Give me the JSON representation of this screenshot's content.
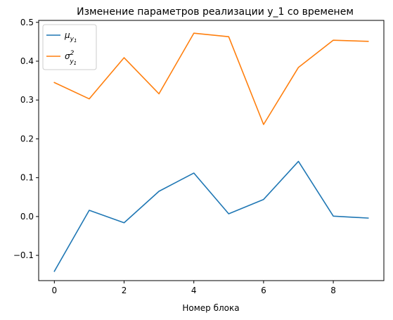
{
  "chart_data": {
    "type": "line",
    "title": "Изменение параметров реализации y_1 со временем",
    "xlabel": "Номер блока",
    "ylabel": "",
    "x": [
      0,
      1,
      2,
      3,
      4,
      5,
      6,
      7,
      8,
      9
    ],
    "xlim": [
      -0.45,
      9.45
    ],
    "ylim": [
      -0.165,
      0.505
    ],
    "xticks": [
      0,
      2,
      4,
      6,
      8
    ],
    "yticks": [
      -0.1,
      0.0,
      0.1,
      0.2,
      0.3,
      0.4,
      0.5
    ],
    "xtick_labels": [
      "0",
      "2",
      "4",
      "6",
      "8"
    ],
    "ytick_labels": [
      "−0.1",
      "0.0",
      "0.1",
      "0.2",
      "0.3",
      "0.4",
      "0.5"
    ],
    "grid": false,
    "legend_position": "top-left",
    "series": [
      {
        "name": "μ_{y_1}",
        "legend_main": "μ",
        "legend_sub": "y",
        "legend_subsub": "1",
        "legend_sup": "",
        "color": "#1f77b4",
        "values": [
          -0.141,
          0.016,
          -0.016,
          0.065,
          0.112,
          0.007,
          0.044,
          0.142,
          0.001,
          -0.004
        ]
      },
      {
        "name": "σ²_{y_1}",
        "legend_main": "σ",
        "legend_sub": "y",
        "legend_subsub": "1",
        "legend_sup": "2",
        "color": "#ff7f0e",
        "values": [
          0.345,
          0.303,
          0.409,
          0.316,
          0.472,
          0.463,
          0.237,
          0.384,
          0.454,
          0.451
        ]
      }
    ]
  }
}
